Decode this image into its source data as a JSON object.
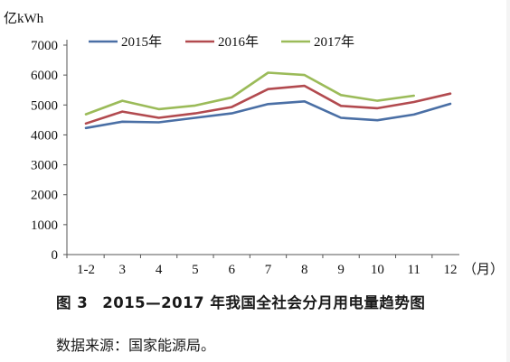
{
  "chart_data": {
    "type": "line",
    "unit_label": "亿kWh",
    "x_unit_label": "（月）",
    "categories": [
      "1-2",
      "3",
      "4",
      "5",
      "6",
      "7",
      "8",
      "9",
      "10",
      "11",
      "12"
    ],
    "ylim": [
      0,
      7000
    ],
    "yticks": [
      0,
      1000,
      2000,
      3000,
      4000,
      5000,
      6000,
      7000
    ],
    "grid": false,
    "legend_position": "top",
    "series": [
      {
        "name": "2015年",
        "color": "#4a6fa5",
        "values": [
          4230,
          4440,
          4420,
          4570,
          4720,
          5030,
          5120,
          4570,
          4490,
          4680,
          5040
        ]
      },
      {
        "name": "2016年",
        "color": "#b24a4f",
        "values": [
          4380,
          4780,
          4570,
          4720,
          4930,
          5530,
          5640,
          4970,
          4890,
          5100,
          5380
        ]
      },
      {
        "name": "2017年",
        "color": "#9bbb59",
        "values": [
          4690,
          5140,
          4860,
          4980,
          5250,
          6080,
          6000,
          5330,
          5140,
          5310,
          null
        ]
      }
    ]
  },
  "caption": {
    "figure_no": "图 3",
    "text": "2015—2017 年我国全社会分月用电量趋势图"
  },
  "source": "数据来源：国家能源局。"
}
